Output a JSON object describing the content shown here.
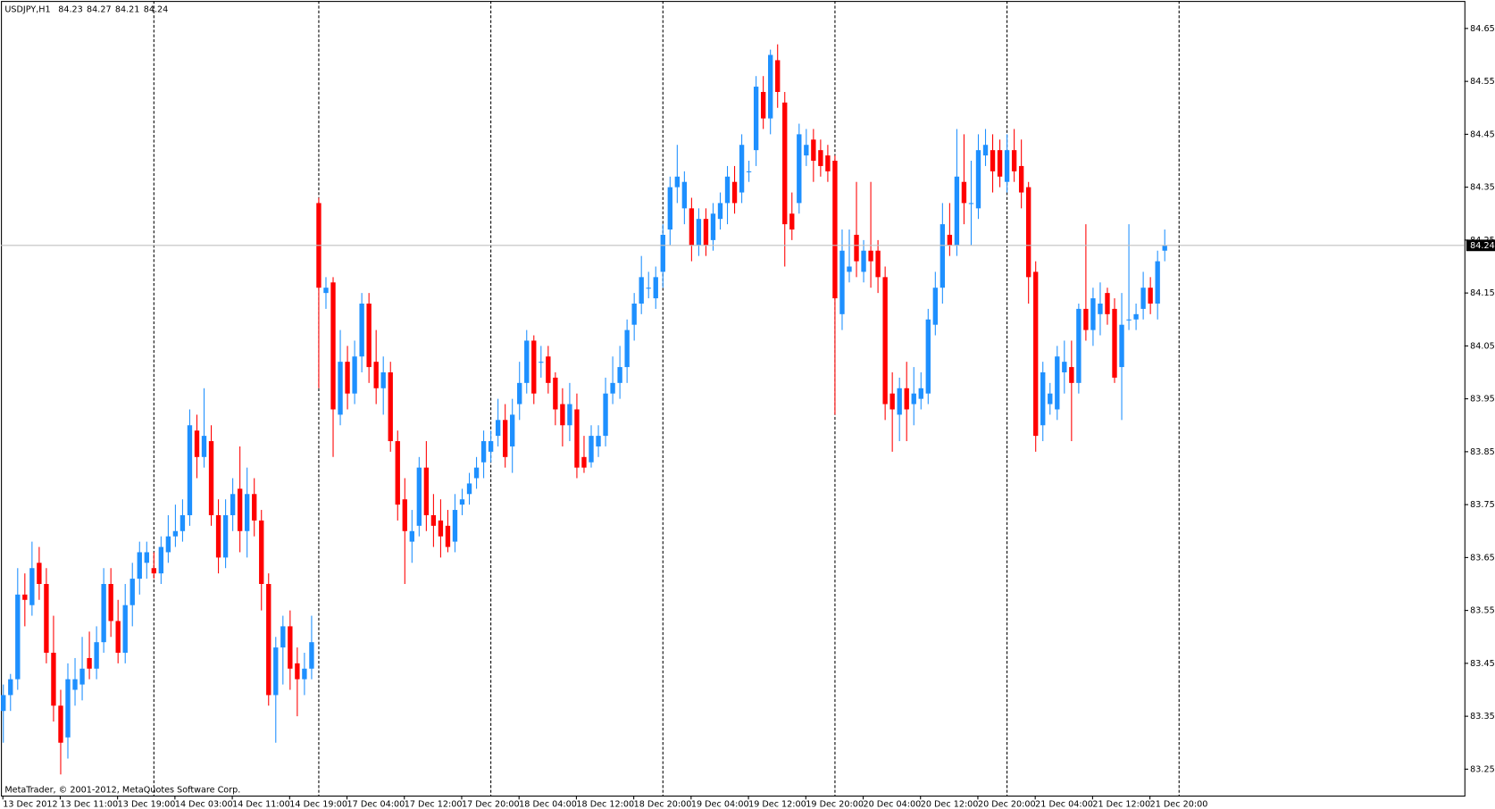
{
  "chart_data": {
    "type": "candlestick",
    "title": "USDJPY,H1",
    "footer": "MetaTrader, © 2001-2012, MetaQuotes Software Corp.",
    "colors": {
      "up": "#1e90ff",
      "down": "#ff0000",
      "separator": "#000000",
      "bid_line": "#c0c0c0"
    },
    "ylim": [
      83.2,
      84.702
    ],
    "yticks": [
      83.25,
      83.35,
      83.45,
      83.55,
      83.65,
      83.75,
      83.85,
      83.95,
      84.05,
      84.15,
      84.25,
      84.35,
      84.45,
      84.55,
      84.65
    ],
    "period_separators": [
      21,
      44,
      68,
      92,
      116,
      140,
      164
    ],
    "categories": [
      "13 Dec 2012",
      null,
      null,
      null,
      null,
      null,
      null,
      null,
      "13 Dec 11:00",
      null,
      null,
      null,
      null,
      null,
      null,
      null,
      "13 Dec 19:00",
      null,
      null,
      null,
      null,
      null,
      null,
      null,
      "14 Dec 03:00",
      null,
      null,
      null,
      null,
      null,
      null,
      null,
      "14 Dec 11:00",
      null,
      null,
      null,
      null,
      null,
      null,
      null,
      "14 Dec 19:00",
      null,
      null,
      null,
      null,
      null,
      null,
      null,
      "17 Dec 04:00",
      null,
      null,
      null,
      null,
      null,
      null,
      null,
      "17 Dec 12:00",
      null,
      null,
      null,
      null,
      null,
      null,
      null,
      "17 Dec 20:00",
      null,
      null,
      null,
      null,
      null,
      null,
      null,
      "18 Dec 04:00",
      null,
      null,
      null,
      null,
      null,
      null,
      null,
      "18 Dec 12:00",
      null,
      null,
      null,
      null,
      null,
      null,
      null,
      "18 Dec 20:00",
      null,
      null,
      null,
      null,
      null,
      null,
      null,
      "19 Dec 04:00",
      null,
      null,
      null,
      null,
      null,
      null,
      null,
      "19 Dec 12:00",
      null,
      null,
      null,
      null,
      null,
      null,
      null,
      "19 Dec 20:00",
      null,
      null,
      null,
      null,
      null,
      null,
      null,
      "20 Dec 04:00",
      null,
      null,
      null,
      null,
      null,
      null,
      null,
      "20 Dec 12:00",
      null,
      null,
      null,
      null,
      null,
      null,
      null,
      "20 Dec 20:00",
      null,
      null,
      null,
      null,
      null,
      null,
      null,
      "21 Dec 04:00",
      null,
      null,
      null,
      null,
      null,
      null,
      null,
      "21 Dec 12:00",
      null,
      null,
      null,
      null,
      null,
      null,
      null,
      "21 Dec 20:00",
      null,
      null
    ],
    "candles": [
      [
        83.36,
        83.41,
        83.3,
        83.39
      ],
      [
        83.39,
        83.43,
        83.36,
        83.42
      ],
      [
        83.42,
        83.63,
        83.4,
        83.58
      ],
      [
        83.58,
        83.62,
        83.52,
        83.57
      ],
      [
        83.56,
        83.68,
        83.54,
        83.63
      ],
      [
        83.64,
        83.67,
        83.57,
        83.6
      ],
      [
        83.6,
        83.63,
        83.45,
        83.47
      ],
      [
        83.47,
        83.54,
        83.34,
        83.37
      ],
      [
        83.37,
        83.4,
        83.24,
        83.3
      ],
      [
        83.31,
        83.45,
        83.27,
        83.42
      ],
      [
        83.4,
        83.46,
        83.37,
        83.42
      ],
      [
        83.41,
        83.5,
        83.38,
        83.44
      ],
      [
        83.46,
        83.51,
        83.42,
        83.44
      ],
      [
        83.44,
        83.52,
        83.42,
        83.49
      ],
      [
        83.49,
        83.63,
        83.47,
        83.6
      ],
      [
        83.6,
        83.63,
        83.5,
        83.53
      ],
      [
        83.53,
        83.57,
        83.45,
        83.47
      ],
      [
        83.47,
        83.6,
        83.45,
        83.56
      ],
      [
        83.56,
        83.64,
        83.52,
        83.61
      ],
      [
        83.61,
        83.68,
        83.58,
        83.66
      ],
      [
        83.64,
        83.68,
        83.61,
        83.66
      ],
      [
        83.63,
        83.66,
        83.61,
        83.62
      ],
      [
        83.62,
        83.69,
        83.6,
        83.67
      ],
      [
        83.66,
        83.73,
        83.64,
        83.69
      ],
      [
        83.69,
        83.75,
        83.67,
        83.7
      ],
      [
        83.7,
        83.76,
        83.68,
        83.73
      ],
      [
        83.73,
        83.93,
        83.71,
        83.9
      ],
      [
        83.89,
        83.92,
        83.8,
        83.84
      ],
      [
        83.84,
        83.97,
        83.82,
        83.88
      ],
      [
        83.87,
        83.9,
        83.71,
        83.73
      ],
      [
        83.73,
        83.76,
        83.62,
        83.65
      ],
      [
        83.65,
        83.76,
        83.63,
        83.73
      ],
      [
        83.73,
        83.8,
        83.7,
        83.77
      ],
      [
        83.78,
        83.86,
        83.66,
        83.7
      ],
      [
        83.7,
        83.82,
        83.65,
        83.77
      ],
      [
        83.77,
        83.8,
        83.69,
        83.72
      ],
      [
        83.72,
        83.74,
        83.55,
        83.6
      ],
      [
        83.6,
        83.62,
        83.37,
        83.39
      ],
      [
        83.39,
        83.5,
        83.3,
        83.48
      ],
      [
        83.48,
        83.54,
        83.41,
        83.52
      ],
      [
        83.52,
        83.55,
        83.4,
        83.44
      ],
      [
        83.45,
        83.48,
        83.35,
        83.42
      ],
      [
        83.42,
        83.47,
        83.39,
        83.44
      ],
      [
        83.44,
        83.54,
        83.42,
        83.49
      ],
      [
        84.32,
        84.33,
        83.97,
        84.16
      ],
      [
        84.15,
        84.18,
        84.12,
        84.16
      ],
      [
        84.17,
        84.18,
        83.84,
        83.93
      ],
      [
        83.92,
        84.08,
        83.9,
        84.02
      ],
      [
        84.02,
        84.05,
        83.93,
        83.96
      ],
      [
        83.96,
        84.06,
        83.94,
        84.03
      ],
      [
        84.03,
        84.15,
        84.0,
        84.13
      ],
      [
        84.13,
        84.15,
        83.98,
        84.01
      ],
      [
        84.02,
        84.08,
        83.94,
        83.97
      ],
      [
        83.97,
        84.03,
        83.92,
        84.0
      ],
      [
        84.0,
        84.02,
        83.85,
        83.87
      ],
      [
        83.87,
        83.89,
        83.72,
        83.75
      ],
      [
        83.76,
        83.8,
        83.6,
        83.7
      ],
      [
        83.68,
        83.74,
        83.64,
        83.7
      ],
      [
        83.71,
        83.84,
        83.69,
        83.82
      ],
      [
        83.82,
        83.87,
        83.7,
        83.73
      ],
      [
        83.73,
        83.77,
        83.67,
        83.71
      ],
      [
        83.72,
        83.76,
        83.65,
        83.69
      ],
      [
        83.71,
        83.74,
        83.66,
        83.67
      ],
      [
        83.68,
        83.77,
        83.66,
        83.74
      ],
      [
        83.75,
        83.78,
        83.73,
        83.76
      ],
      [
        83.77,
        83.81,
        83.75,
        83.79
      ],
      [
        83.8,
        83.84,
        83.78,
        83.82
      ],
      [
        83.83,
        83.89,
        83.8,
        83.87
      ],
      [
        83.85,
        83.89,
        83.83,
        83.87
      ],
      [
        83.88,
        83.95,
        83.86,
        83.91
      ],
      [
        83.91,
        83.94,
        83.82,
        83.84
      ],
      [
        83.86,
        83.95,
        83.81,
        83.92
      ],
      [
        83.94,
        84.02,
        83.91,
        83.98
      ],
      [
        83.98,
        84.08,
        83.96,
        84.06
      ],
      [
        84.06,
        84.07,
        83.94,
        83.96
      ],
      [
        84.02,
        84.05,
        83.99,
        84.02
      ],
      [
        84.03,
        84.05,
        83.96,
        83.98
      ],
      [
        83.99,
        84.0,
        83.9,
        83.93
      ],
      [
        83.94,
        83.97,
        83.86,
        83.9
      ],
      [
        83.9,
        83.98,
        83.87,
        83.94
      ],
      [
        83.93,
        83.96,
        83.8,
        83.82
      ],
      [
        83.84,
        83.88,
        83.81,
        83.82
      ],
      [
        83.83,
        83.9,
        83.82,
        83.88
      ],
      [
        83.86,
        83.9,
        83.84,
        83.88
      ],
      [
        83.88,
        83.99,
        83.86,
        83.96
      ],
      [
        83.96,
        84.03,
        83.94,
        83.98
      ],
      [
        83.98,
        84.05,
        83.95,
        84.01
      ],
      [
        84.01,
        84.1,
        83.98,
        84.08
      ],
      [
        84.09,
        84.15,
        84.06,
        84.13
      ],
      [
        84.13,
        84.22,
        84.11,
        84.18
      ],
      [
        84.16,
        84.19,
        84.14,
        84.16
      ],
      [
        84.14,
        84.2,
        84.12,
        84.18
      ],
      [
        84.19,
        84.28,
        84.16,
        84.26
      ],
      [
        84.27,
        84.37,
        84.24,
        84.35
      ],
      [
        84.35,
        84.43,
        84.32,
        84.37
      ],
      [
        84.31,
        84.38,
        84.28,
        84.36
      ],
      [
        84.31,
        84.33,
        84.21,
        84.24
      ],
      [
        84.24,
        84.31,
        84.22,
        84.29
      ],
      [
        84.29,
        84.31,
        84.22,
        84.24
      ],
      [
        84.25,
        84.32,
        84.23,
        84.3
      ],
      [
        84.29,
        84.34,
        84.27,
        84.32
      ],
      [
        84.32,
        84.39,
        84.28,
        84.37
      ],
      [
        84.36,
        84.39,
        84.3,
        84.32
      ],
      [
        84.34,
        84.45,
        84.32,
        84.43
      ],
      [
        84.38,
        84.4,
        84.36,
        84.38
      ],
      [
        84.42,
        84.56,
        84.39,
        84.54
      ],
      [
        84.53,
        84.56,
        84.46,
        84.48
      ],
      [
        84.48,
        84.61,
        84.45,
        84.6
      ],
      [
        84.59,
        84.62,
        84.5,
        84.53
      ],
      [
        84.51,
        84.53,
        84.2,
        84.28
      ],
      [
        84.3,
        84.34,
        84.25,
        84.27
      ],
      [
        84.32,
        84.47,
        84.3,
        84.45
      ],
      [
        84.41,
        84.46,
        84.39,
        84.43
      ],
      [
        84.44,
        84.46,
        84.36,
        84.4
      ],
      [
        84.42,
        84.44,
        84.37,
        84.39
      ],
      [
        84.41,
        84.43,
        84.36,
        84.38
      ],
      [
        84.4,
        84.41,
        83.92,
        84.14
      ],
      [
        84.11,
        84.27,
        84.08,
        84.23
      ],
      [
        84.19,
        84.27,
        84.17,
        84.2
      ],
      [
        84.26,
        84.36,
        84.18,
        84.21
      ],
      [
        84.19,
        84.25,
        84.17,
        84.23
      ],
      [
        84.23,
        84.36,
        84.16,
        84.21
      ],
      [
        84.23,
        84.25,
        84.15,
        84.18
      ],
      [
        84.18,
        84.2,
        83.91,
        83.94
      ],
      [
        83.96,
        84.0,
        83.85,
        83.93
      ],
      [
        83.92,
        83.99,
        83.87,
        83.97
      ],
      [
        83.97,
        84.02,
        83.87,
        83.93
      ],
      [
        83.94,
        84.01,
        83.9,
        83.96
      ],
      [
        83.95,
        84.0,
        83.93,
        83.97
      ],
      [
        83.96,
        84.12,
        83.94,
        84.1
      ],
      [
        84.09,
        84.19,
        84.07,
        84.16
      ],
      [
        84.16,
        84.32,
        84.13,
        84.28
      ],
      [
        84.26,
        84.32,
        84.22,
        84.24
      ],
      [
        84.24,
        84.46,
        84.22,
        84.37
      ],
      [
        84.36,
        84.45,
        84.28,
        84.32
      ],
      [
        84.32,
        84.4,
        84.24,
        84.32
      ],
      [
        84.31,
        84.45,
        84.29,
        84.42
      ],
      [
        84.41,
        84.46,
        84.39,
        84.43
      ],
      [
        84.42,
        84.45,
        84.34,
        84.38
      ],
      [
        84.42,
        84.44,
        84.35,
        84.37
      ],
      [
        84.36,
        84.45,
        84.34,
        84.42
      ],
      [
        84.42,
        84.46,
        84.36,
        84.38
      ],
      [
        84.39,
        84.44,
        84.31,
        84.34
      ],
      [
        84.35,
        84.36,
        84.13,
        84.18
      ],
      [
        84.19,
        84.21,
        83.85,
        83.88
      ],
      [
        83.9,
        84.02,
        83.87,
        84.0
      ],
      [
        83.94,
        83.98,
        83.92,
        83.96
      ],
      [
        83.93,
        84.05,
        83.91,
        84.03
      ],
      [
        84.0,
        84.06,
        83.96,
        84.02
      ],
      [
        84.01,
        84.06,
        83.87,
        83.98
      ],
      [
        83.98,
        84.13,
        83.96,
        84.12
      ],
      [
        84.12,
        84.28,
        84.06,
        84.08
      ],
      [
        84.08,
        84.16,
        84.05,
        84.14
      ],
      [
        84.11,
        84.17,
        84.07,
        84.13
      ],
      [
        84.15,
        84.16,
        84.09,
        84.11
      ],
      [
        84.12,
        84.14,
        83.98,
        83.99
      ],
      [
        84.01,
        84.15,
        83.91,
        84.09
      ],
      [
        84.1,
        84.28,
        84.08,
        84.1
      ],
      [
        84.1,
        84.13,
        84.08,
        84.11
      ],
      [
        84.12,
        84.19,
        84.1,
        84.16
      ],
      [
        84.16,
        84.18,
        84.11,
        84.13
      ],
      [
        84.13,
        84.23,
        84.1,
        84.21
      ],
      [
        84.23,
        84.27,
        84.21,
        84.24
      ]
    ]
  }
}
